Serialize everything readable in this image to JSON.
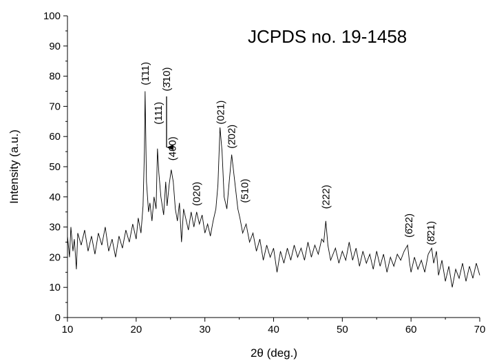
{
  "chart_data": {
    "type": "line",
    "title": "JCPDS   no. 19-1458",
    "x_label": "2θ (deg.)",
    "y_label": "Intensity (a.u.)",
    "xlim": [
      10,
      70
    ],
    "ylim": [
      0,
      100
    ],
    "xticks": [
      10,
      20,
      30,
      40,
      50,
      60,
      70
    ],
    "yticks": [
      0,
      10,
      20,
      30,
      40,
      50,
      60,
      70,
      80,
      90,
      100
    ],
    "grid": false,
    "series": [
      {
        "color": "#000000",
        "x": [
          10,
          10.3,
          10.5,
          10.8,
          11,
          11.3,
          11.5,
          12,
          12.5,
          13,
          13.5,
          14,
          14.5,
          15,
          15.5,
          16,
          16.5,
          17,
          17.5,
          18,
          18.5,
          19,
          19.5,
          20,
          20.3,
          20.7,
          21,
          21.2,
          21.3,
          21.5,
          21.8,
          22,
          22.3,
          22.6,
          22.9,
          23.1,
          23.3,
          23.6,
          24,
          24.3,
          24.5,
          24.8,
          25.1,
          25.4,
          25.7,
          26,
          26.3,
          26.6,
          26.9,
          27.2,
          27.6,
          28,
          28.4,
          28.8,
          29.2,
          29.6,
          30,
          30.4,
          30.8,
          31.2,
          31.6,
          31.9,
          32.2,
          32.5,
          32.8,
          33.2,
          33.5,
          33.9,
          34.2,
          34.5,
          34.8,
          35.1,
          35.5,
          36,
          36.5,
          37,
          37.5,
          38,
          38.5,
          39,
          39.5,
          40,
          40.5,
          41,
          41.5,
          42,
          42.5,
          43,
          43.5,
          44,
          44.5,
          45,
          45.5,
          46,
          46.5,
          47,
          47.3,
          47.6,
          47.9,
          48.3,
          49,
          49.5,
          50,
          50.5,
          51,
          51.5,
          52,
          52.5,
          53,
          53.5,
          54,
          54.5,
          55,
          55.5,
          56,
          56.5,
          57,
          57.5,
          58,
          58.5,
          59,
          59.5,
          59.8,
          60,
          60.5,
          61,
          61.5,
          62,
          62.5,
          63,
          63.3,
          63.7,
          64,
          64.5,
          65,
          65.5,
          66,
          66.5,
          67,
          67.5,
          68,
          68.5,
          69,
          69.5,
          70
        ],
        "values": [
          27,
          20,
          30,
          22,
          26,
          16,
          28,
          24,
          29,
          22,
          27,
          21,
          28,
          24,
          30,
          22,
          26,
          20,
          27,
          23,
          29,
          25,
          31,
          26,
          33,
          28,
          37,
          55,
          75,
          45,
          35,
          38,
          32,
          40,
          36,
          56,
          48,
          40,
          34,
          45,
          37,
          44,
          49,
          45,
          36,
          32,
          38,
          25,
          36,
          33,
          29,
          35,
          30,
          35,
          31,
          34,
          28,
          31,
          27,
          32,
          36,
          44,
          63,
          55,
          40,
          36,
          44,
          54,
          48,
          42,
          36,
          33,
          28,
          31,
          25,
          28,
          22,
          26,
          19,
          24,
          20,
          23,
          15,
          22,
          18,
          23,
          19,
          24,
          20,
          23,
          19,
          25,
          20,
          24,
          21,
          26,
          25,
          32,
          24,
          19,
          23,
          18,
          22,
          19,
          25,
          19,
          23,
          17,
          22,
          18,
          21,
          16,
          22,
          17,
          21,
          15,
          20,
          17,
          21,
          19,
          22,
          24,
          18,
          15,
          20,
          16,
          19,
          15,
          21,
          23,
          18,
          22,
          14,
          19,
          12,
          17,
          10,
          16,
          13,
          18,
          12,
          17,
          13,
          18,
          14
        ]
      }
    ],
    "annotations": [
      {
        "text": "(1̄11)",
        "x": 21.3,
        "y": 77
      },
      {
        "text": "(111)",
        "x": 23.2,
        "y": 64
      },
      {
        "text": "(3̄10)",
        "x": 24.4,
        "y": 75
      },
      {
        "text": "(400)",
        "x": 25.3,
        "y": 52
      },
      {
        "text": "(020)",
        "x": 28.8,
        "y": 37
      },
      {
        "text": "(021)",
        "x": 32.3,
        "y": 64
      },
      {
        "text": "(2̄02)",
        "x": 33.9,
        "y": 56
      },
      {
        "text": "(510)",
        "x": 35.8,
        "y": 38
      },
      {
        "text": "(222)",
        "x": 47.6,
        "y": 36
      },
      {
        "text": "(6̄22)",
        "x": 59.7,
        "y": 26.5
      },
      {
        "text": "(8̄21)",
        "x": 62.9,
        "y": 24
      }
    ]
  }
}
